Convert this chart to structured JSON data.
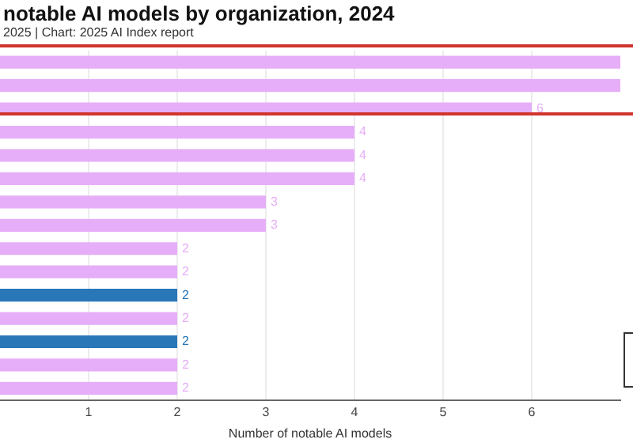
{
  "chart_data": {
    "type": "bar",
    "orientation": "horizontal",
    "title": "notable AI models by organization, 2024",
    "subtitle": "2025 | Chart: 2025 AI Index report",
    "xlabel": "Number of notable AI models",
    "categories": [
      null,
      null,
      null,
      null,
      null,
      null,
      null,
      null,
      null,
      null,
      null,
      null,
      null,
      null,
      null
    ],
    "values": [
      7,
      7,
      6,
      4,
      4,
      4,
      3,
      3,
      2,
      2,
      2,
      2,
      2,
      2,
      2
    ],
    "colors": [
      "#e6aef8",
      "#e6aef8",
      "#e6aef8",
      "#e6aef8",
      "#e6aef8",
      "#e6aef8",
      "#e6aef8",
      "#e6aef8",
      "#e6aef8",
      "#e6aef8",
      "#2a77b8",
      "#e6aef8",
      "#2a77b8",
      "#e6aef8",
      "#e6aef8"
    ],
    "value_labels": [
      null,
      null,
      "6",
      "4",
      "4",
      "4",
      "3",
      "3",
      "2",
      "2",
      "2",
      "2",
      "2",
      "2",
      "2"
    ],
    "xlim": [
      0,
      7
    ],
    "xticks": [
      1,
      2,
      3,
      4,
      5,
      6
    ],
    "grid": "x",
    "legend": false,
    "tick_labels": "x"
  }
}
